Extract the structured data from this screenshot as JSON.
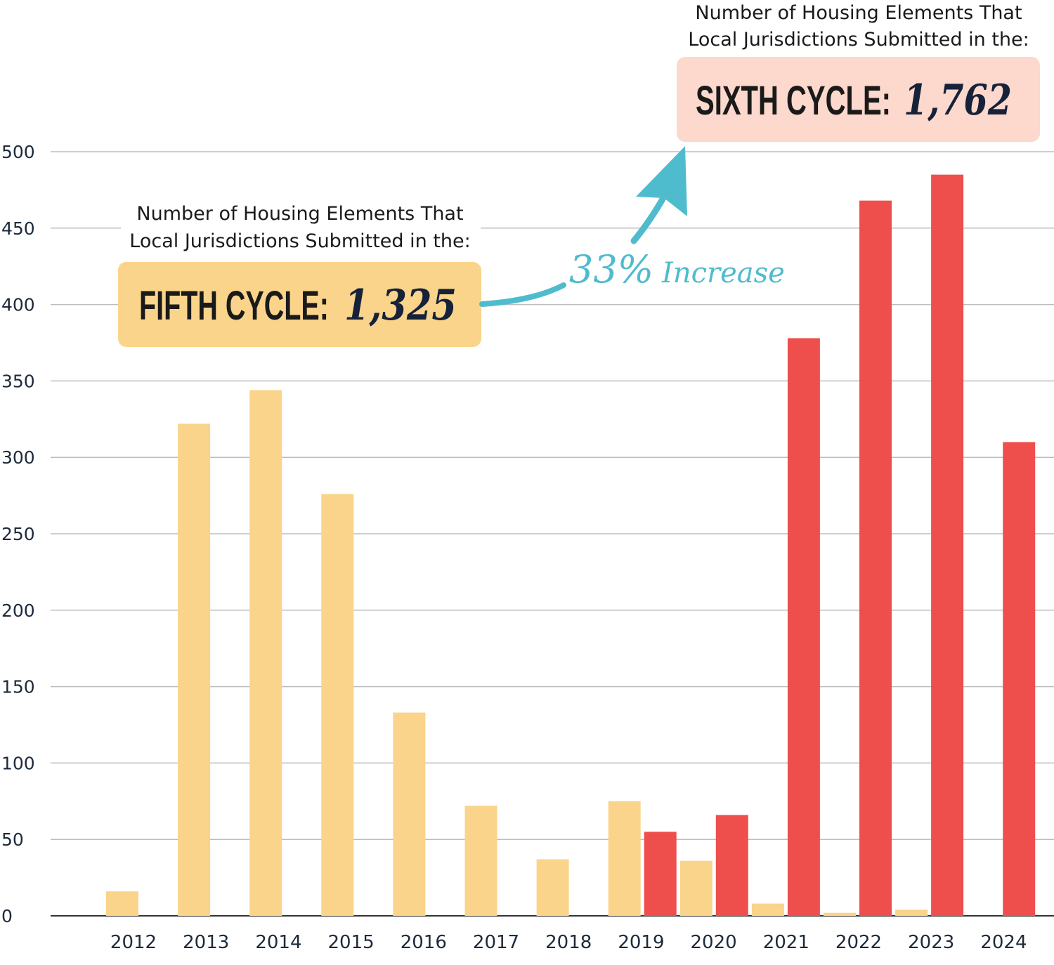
{
  "chart_data": {
    "type": "bar",
    "categories": [
      "2012",
      "2013",
      "2014",
      "2015",
      "2016",
      "2017",
      "2018",
      "2019",
      "2020",
      "2021",
      "2022",
      "2023",
      "2024"
    ],
    "series": [
      {
        "values": [
          16,
          322,
          344,
          276,
          133,
          72,
          37,
          75,
          36,
          8,
          2,
          4,
          null
        ],
        "color": "#f9d48a"
      },
      {
        "values": [
          null,
          null,
          null,
          null,
          null,
          null,
          null,
          55,
          66,
          378,
          468,
          485,
          310
        ],
        "color": "#ef4f4c"
      }
    ],
    "ylim": [
      0,
      500
    ],
    "yticks": [
      "0",
      "50",
      "100",
      "150",
      "200",
      "250",
      "300",
      "350",
      "400",
      "450",
      "500"
    ],
    "grid": true
  },
  "annotations": {
    "fifth": {
      "line1": "Number of Housing Elements That",
      "line2": "Local Jurisdictions Submitted in the:",
      "label": "FIFTH CYCLE:",
      "value": "1,325",
      "bg": "#f9d48a"
    },
    "sixth": {
      "line1": "Number of Housing Elements That",
      "line2": "Local Jurisdictions Submitted in the:",
      "label": "SIXTH CYCLE:",
      "value": "1,762",
      "bg": "#fdd8cc"
    },
    "increase": {
      "pct": "33%",
      "text": "Increase",
      "color": "#4fbccd"
    }
  }
}
